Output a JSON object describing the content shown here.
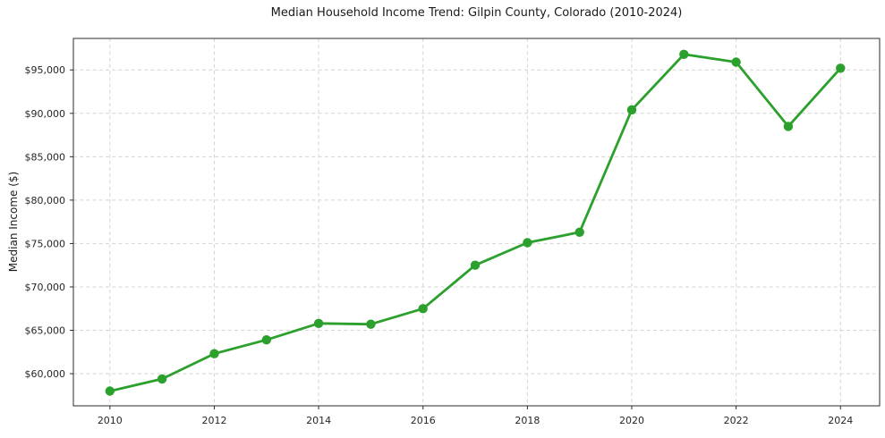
{
  "title": "Median Household Income Trend: Gilpin County, Colorado (2010-2024)",
  "y_axis_label": "Median Income ($)",
  "chart_data": {
    "type": "line",
    "title": "Median Household Income Trend: Gilpin County, Colorado (2010-2024)",
    "xlabel": "",
    "ylabel": "Median Income ($)",
    "x": [
      2010,
      2011,
      2012,
      2013,
      2014,
      2015,
      2016,
      2017,
      2018,
      2019,
      2020,
      2021,
      2022,
      2023,
      2024
    ],
    "values": [
      58000,
      59400,
      62300,
      63900,
      65800,
      65700,
      67500,
      72500,
      75100,
      76300,
      90400,
      96800,
      95900,
      88500,
      95200
    ],
    "series_name": "Median Household Income",
    "x_ticks": [
      2010,
      2012,
      2014,
      2016,
      2018,
      2020,
      2022,
      2024
    ],
    "x_tick_labels": [
      "2010",
      "2012",
      "2014",
      "2016",
      "2018",
      "2020",
      "2022",
      "2024"
    ],
    "y_ticks": [
      60000,
      65000,
      70000,
      75000,
      80000,
      85000,
      90000,
      95000
    ],
    "y_tick_labels": [
      "$60,000",
      "$65,000",
      "$70,000",
      "$75,000",
      "$80,000",
      "$85,000",
      "$90,000",
      "$95,000"
    ],
    "xlim": [
      2009.3,
      2024.75
    ],
    "ylim": [
      56300,
      98630
    ],
    "grid": true,
    "grid_style": "dashed",
    "legend": "none",
    "line_color": "#2ca02c",
    "marker_color": "#2ca02c",
    "marker": "circle",
    "grid_color": "#d4d4d4",
    "axis_color": "#2b2b2b",
    "text_color": "#262626",
    "background_color": "#ffffff"
  }
}
